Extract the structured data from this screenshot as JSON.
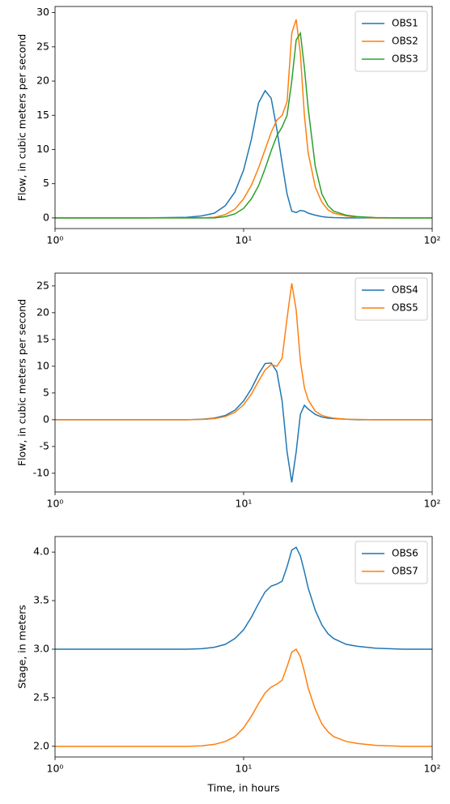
{
  "chart_data": [
    {
      "type": "line",
      "ylabel": "Flow, in cubic meters per second",
      "log_x": true,
      "legend": "upper right",
      "x": [
        1,
        2,
        3,
        5,
        6,
        7,
        8,
        9,
        10,
        11,
        12,
        13,
        14,
        15,
        16,
        17,
        18,
        19,
        20,
        21,
        22,
        24,
        26,
        28,
        30,
        35,
        40,
        50,
        70,
        100
      ],
      "series": [
        {
          "name": "OBS1",
          "color": "#1f77b4",
          "values": [
            0,
            0,
            0,
            0.1,
            0.3,
            0.7,
            1.8,
            3.8,
            7,
            11.5,
            16.8,
            18.6,
            17.5,
            13,
            8,
            3.5,
            1.0,
            0.8,
            1.1,
            1.0,
            0.7,
            0.4,
            0.2,
            0.1,
            0.05,
            0,
            0,
            0,
            0,
            0
          ]
        },
        {
          "name": "OBS2",
          "color": "#ff7f0e",
          "values": [
            0,
            0,
            0,
            0,
            0,
            0.1,
            0.5,
            1.3,
            2.8,
            4.8,
            7.3,
            10,
            12.5,
            14.3,
            15,
            17,
            27,
            29,
            24,
            15,
            9.5,
            4.5,
            2.3,
            1.2,
            0.7,
            0.3,
            0.1,
            0,
            0,
            0
          ]
        },
        {
          "name": "OBS3",
          "color": "#2ca02c",
          "values": [
            0,
            0,
            0,
            0,
            0,
            0,
            0.2,
            0.6,
            1.4,
            2.8,
            4.7,
            7.2,
            9.8,
            12,
            13.3,
            15,
            20,
            26,
            27,
            22,
            16,
            7.5,
            3.5,
            1.8,
            1,
            0.4,
            0.2,
            0.05,
            0,
            0
          ]
        }
      ],
      "xlim": [
        1,
        100
      ],
      "xticks": [
        {
          "value": 1,
          "label": "10⁰"
        },
        {
          "value": 10,
          "label": "10¹"
        },
        {
          "value": 100,
          "label": "10²"
        }
      ],
      "ylim": [
        -1.55,
        30.9
      ],
      "yticks": [
        0,
        5,
        10,
        15,
        20,
        25,
        30
      ]
    },
    {
      "type": "line",
      "ylabel": "Flow, in cubic meters per second",
      "log_x": true,
      "legend": "upper right",
      "x": [
        1,
        2,
        3,
        5,
        6,
        7,
        8,
        9,
        10,
        11,
        12,
        13,
        14,
        15,
        16,
        17,
        18,
        19,
        20,
        21,
        22,
        24,
        26,
        28,
        30,
        35,
        40,
        50,
        70,
        100
      ],
      "series": [
        {
          "name": "OBS4",
          "color": "#1f77b4",
          "values": [
            0,
            0,
            0,
            0,
            0.1,
            0.3,
            0.8,
            1.8,
            3.5,
            5.8,
            8.5,
            10.5,
            10.6,
            9,
            3.5,
            -6,
            -11.7,
            -6,
            1,
            2.7,
            2,
            1,
            0.5,
            0.3,
            0.2,
            0.1,
            0,
            0,
            0,
            0
          ]
        },
        {
          "name": "OBS5",
          "color": "#ff7f0e",
          "values": [
            0,
            0,
            0,
            0,
            0.05,
            0.2,
            0.6,
            1.4,
            2.8,
            4.8,
            7.2,
            9.3,
            10.3,
            10,
            11.5,
            19,
            25.5,
            20.5,
            11,
            6,
            3.7,
            1.6,
            0.8,
            0.5,
            0.3,
            0.1,
            0.05,
            0,
            0,
            0
          ]
        }
      ],
      "xlim": [
        1,
        100
      ],
      "xticks": [
        {
          "value": 1,
          "label": "10⁰"
        },
        {
          "value": 10,
          "label": "10¹"
        },
        {
          "value": 100,
          "label": "10²"
        }
      ],
      "ylim": [
        -13.5,
        27.4
      ],
      "yticks": [
        -10,
        -5,
        0,
        5,
        10,
        15,
        20,
        25
      ]
    },
    {
      "type": "line",
      "ylabel": "Stage, in meters",
      "xlabel": "Time, in hours",
      "log_x": true,
      "legend": "upper right",
      "x": [
        1,
        2,
        3,
        5,
        6,
        7,
        8,
        9,
        10,
        11,
        12,
        13,
        14,
        15,
        16,
        17,
        18,
        19,
        20,
        21,
        22,
        24,
        26,
        28,
        30,
        35,
        40,
        50,
        70,
        100
      ],
      "series": [
        {
          "name": "OBS6",
          "color": "#1f77b4",
          "values": [
            3,
            3,
            3,
            3,
            3.005,
            3.02,
            3.05,
            3.11,
            3.2,
            3.33,
            3.47,
            3.59,
            3.65,
            3.67,
            3.7,
            3.85,
            4.02,
            4.05,
            3.96,
            3.8,
            3.63,
            3.4,
            3.25,
            3.16,
            3.11,
            3.05,
            3.03,
            3.01,
            3.0,
            3.0
          ]
        },
        {
          "name": "OBS7",
          "color": "#ff7f0e",
          "values": [
            2,
            2,
            2,
            2,
            2.005,
            2.02,
            2.05,
            2.1,
            2.19,
            2.31,
            2.44,
            2.55,
            2.61,
            2.64,
            2.68,
            2.82,
            2.97,
            3.0,
            2.92,
            2.77,
            2.6,
            2.38,
            2.23,
            2.15,
            2.1,
            2.05,
            2.03,
            2.01,
            2.0,
            2.0
          ]
        }
      ],
      "xlim": [
        1,
        100
      ],
      "xticks": [
        {
          "value": 1,
          "label": "10⁰"
        },
        {
          "value": 10,
          "label": "10¹"
        },
        {
          "value": 100,
          "label": "10²"
        }
      ],
      "ylim": [
        1.89,
        4.16
      ],
      "yticks": [
        {
          "value": 2,
          "label": "2.0"
        },
        2.5,
        {
          "value": 3,
          "label": "3.0"
        },
        3.5,
        {
          "value": 4,
          "label": "4.0"
        }
      ]
    }
  ]
}
